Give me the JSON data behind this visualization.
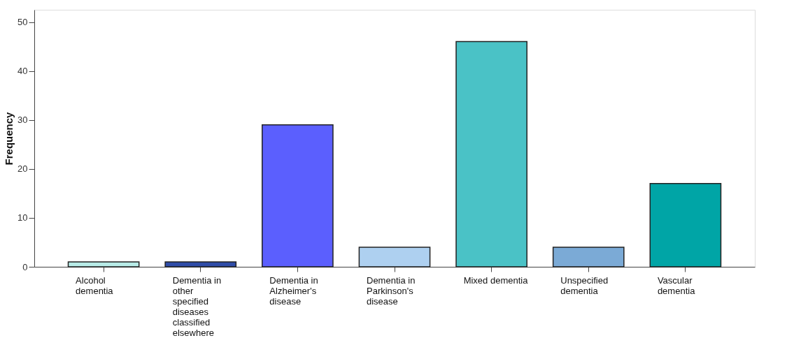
{
  "chart_data": {
    "type": "bar",
    "ylabel": "Frequency",
    "categories": [
      "Alcohol dementia",
      "Dementia in other specified diseases classified elsewhere",
      "Dementia in Alzheimer's disease",
      "Dementia in Parkinson's disease",
      "Mixed dementia",
      "Unspecified dementia",
      "Vascular dementia"
    ],
    "values": [
      1,
      1,
      29,
      4,
      46,
      4,
      17
    ],
    "colors": [
      "#b8ece8",
      "#2f4ca8",
      "#5b5ffe",
      "#aed0f0",
      "#4ac2c6",
      "#7baad6",
      "#00a5a6"
    ],
    "ylim": [
      0,
      52.5
    ],
    "yticks": [
      0,
      10,
      20,
      30,
      40,
      50
    ],
    "grid": false,
    "legend": false
  }
}
